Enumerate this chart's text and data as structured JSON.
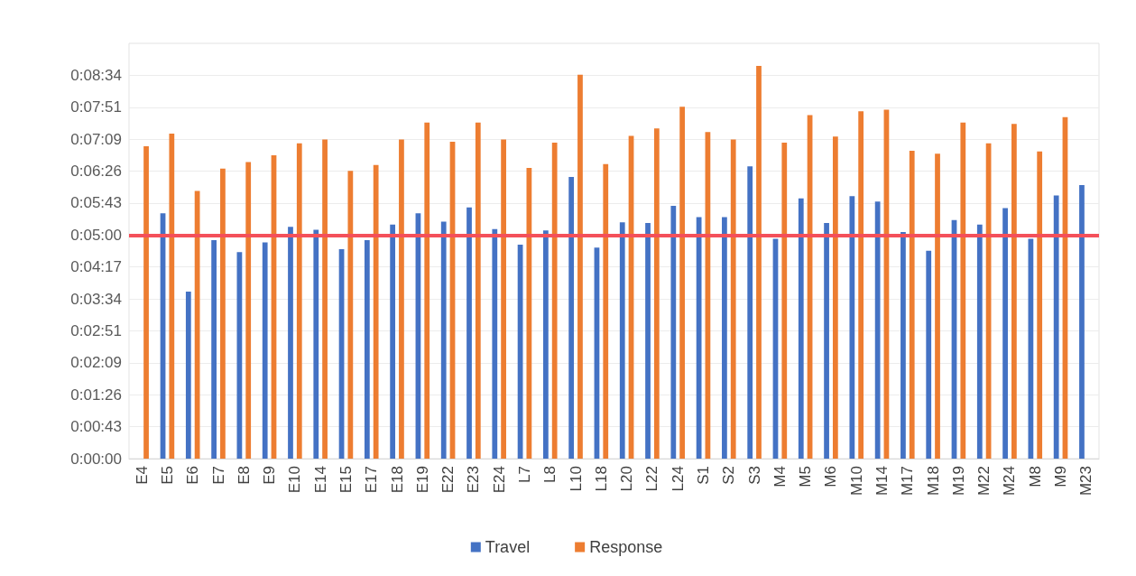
{
  "chart_data": {
    "type": "bar",
    "categories": [
      "E4",
      "E5",
      "E6",
      "E7",
      "E8",
      "E9",
      "E10",
      "E14",
      "E15",
      "E17",
      "E18",
      "E19",
      "E22",
      "E23",
      "E24",
      "L7",
      "L8",
      "L10",
      "L18",
      "L20",
      "L22",
      "L24",
      "S1",
      "S2",
      "S3",
      "M4",
      "M5",
      "M6",
      "M10",
      "M14",
      "M17",
      "M18",
      "M19",
      "M22",
      "M24",
      "M8",
      "M9",
      "M23"
    ],
    "series": [
      {
        "name": "Travel",
        "color": "#4472c4",
        "values": [
          null,
          329,
          224,
          293,
          277,
          290,
          311,
          307,
          281,
          293,
          314,
          329,
          318,
          337,
          308,
          287,
          306,
          378,
          283,
          317,
          316,
          339,
          324,
          324,
          392,
          295,
          349,
          316,
          352,
          345,
          304,
          279,
          320,
          314,
          336,
          295,
          353,
          367
        ]
      },
      {
        "name": "Response",
        "color": "#ed7d31",
        "values": [
          419,
          436,
          359,
          389,
          398,
          407,
          423,
          428,
          386,
          394,
          428,
          451,
          425,
          451,
          428,
          390,
          424,
          515,
          395,
          433,
          443,
          472,
          438,
          428,
          527,
          424,
          461,
          432,
          466,
          468,
          413,
          409,
          451,
          423,
          449,
          412,
          458,
          null
        ]
      }
    ],
    "ylim": [
      0,
      557.14
    ],
    "yticks": [
      {
        "value": 0,
        "label": "0:00:00"
      },
      {
        "value": 42.86,
        "label": "0:00:43"
      },
      {
        "value": 85.71,
        "label": "0:01:26"
      },
      {
        "value": 128.57,
        "label": "0:02:09"
      },
      {
        "value": 171.43,
        "label": "0:02:51"
      },
      {
        "value": 214.29,
        "label": "0:03:34"
      },
      {
        "value": 257.14,
        "label": "0:04:17"
      },
      {
        "value": 300,
        "label": "0:05:00"
      },
      {
        "value": 342.86,
        "label": "0:05:43"
      },
      {
        "value": 385.71,
        "label": "0:06:26"
      },
      {
        "value": 428.57,
        "label": "0:07:09"
      },
      {
        "value": 471.43,
        "label": "0:07:51"
      },
      {
        "value": 514.29,
        "label": "0:08:34"
      }
    ],
    "ref_lines": [
      {
        "axis": "y",
        "value": 300,
        "color": "#f4505a",
        "line_style": "solid"
      }
    ],
    "grid": "y",
    "legend": "bottom"
  }
}
